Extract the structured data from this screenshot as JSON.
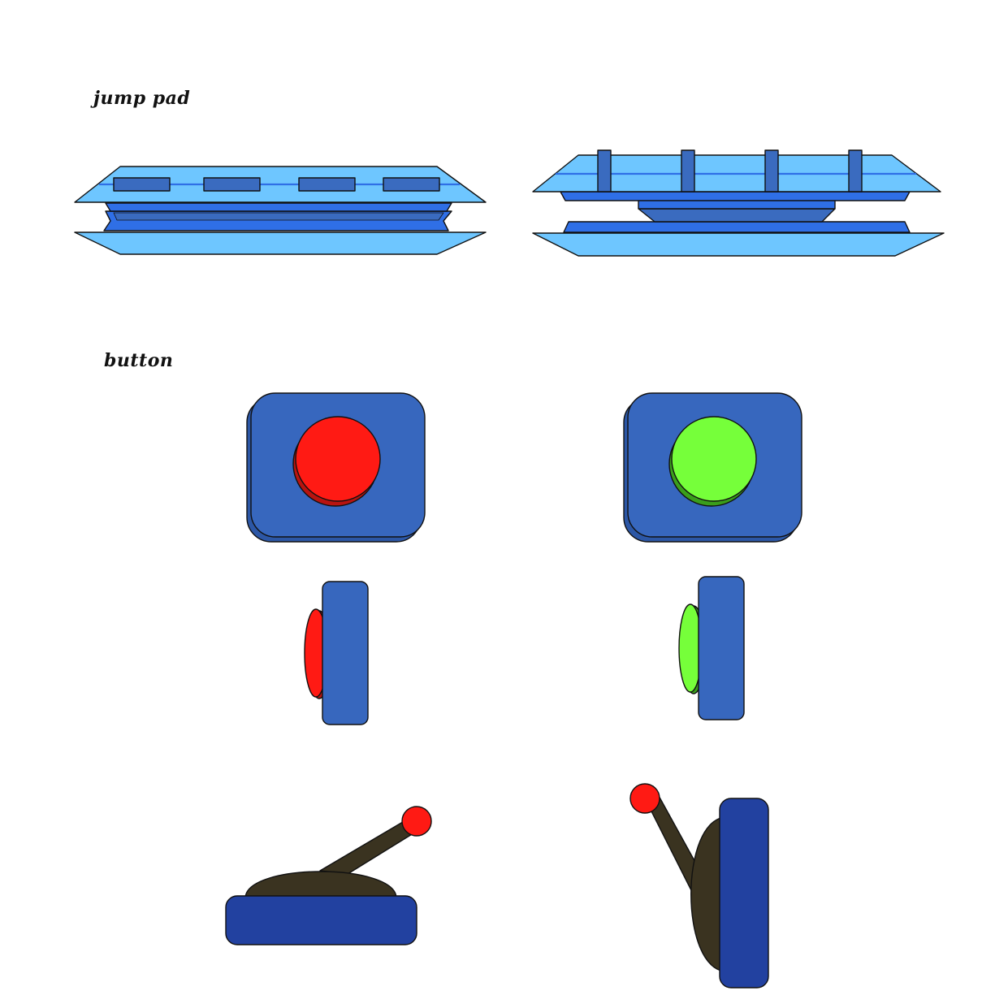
{
  "labels": {
    "jump_pad": "jump pad",
    "button": "button"
  },
  "colors": {
    "pad_light": "#6ec6ff",
    "pad_mid": "#2f6fe6",
    "pad_dark": "#3a6bbf",
    "button_base": "#3767be",
    "button_red": "#ff1a14",
    "button_green": "#76ff3a",
    "lever_base": "#2241a0",
    "lever_arm": "#3a3320",
    "outline": "#111111"
  },
  "assets": [
    "jump-pad-closed",
    "jump-pad-open",
    "button-red-top",
    "button-green-top",
    "button-red-side",
    "button-green-side",
    "lever-off",
    "lever-on"
  ]
}
